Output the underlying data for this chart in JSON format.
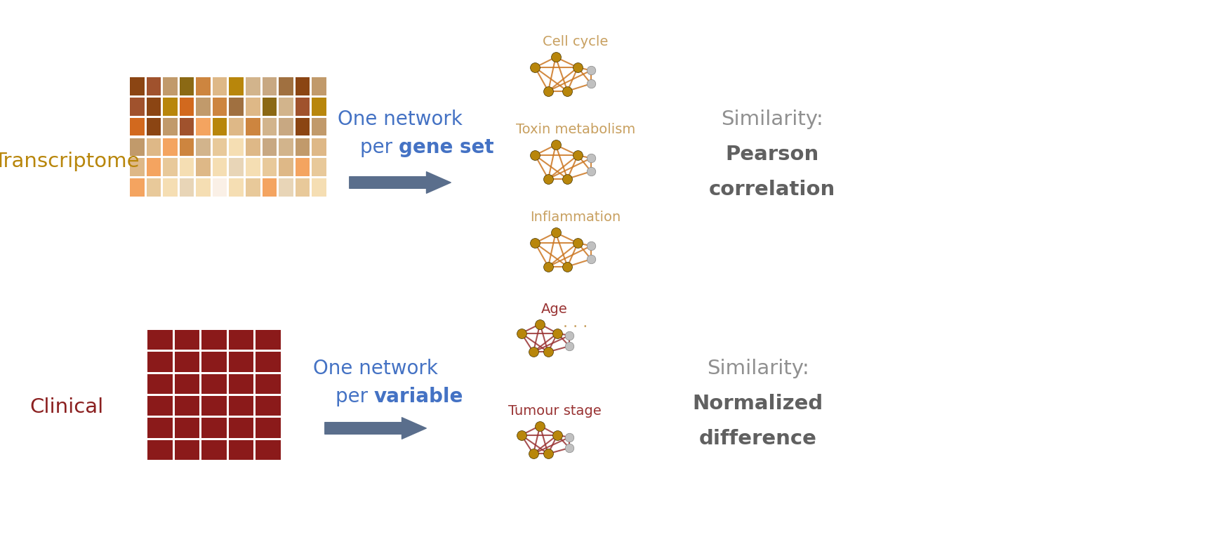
{
  "bg_color": "#ffffff",
  "transcriptome_label": "Transcriptome",
  "clinical_label": "Clinical",
  "transcriptome_color": "#B8860B",
  "clinical_color": "#8B2020",
  "arrow_color": "#5a6e8c",
  "network_edge_color_top": "#CC7722",
  "network_node_color_golden": "#B8860B",
  "network_edge_color_bottom": "#993333",
  "net_label_color_top": "#C8A060",
  "net_label_color_bottom": "#993333",
  "dots_color": "#C8A060",
  "similarity_color": "#909090",
  "similarity_bold_color": "#606060",
  "blue_text_color": "#4472C4",
  "net_labels_top": [
    "Cell cycle",
    "Toxin metabolism",
    "Inflammation"
  ],
  "net_labels_bottom": [
    "Age",
    "Tumour stage"
  ],
  "similarity_top": [
    "Similarity:",
    "Pearson",
    "correlation"
  ],
  "similarity_bottom": [
    "Similarity:",
    "Normalized",
    "difference"
  ],
  "top_text_normal": "One network",
  "top_text_pre": "per ",
  "top_text_bold": "gene set",
  "bottom_text_normal": "One network",
  "bottom_text_pre": "per ",
  "bottom_text_bold": "variable",
  "trans_hm_colors": [
    [
      "#8B4513",
      "#A0522D",
      "#C19A6B",
      "#8B6914",
      "#CD853F",
      "#DEB887",
      "#B8860B",
      "#D2B48C",
      "#C8A882",
      "#A07040",
      "#8B4513",
      "#C19A6B"
    ],
    [
      "#A0522D",
      "#8B4513",
      "#B8860B",
      "#D2691E",
      "#C19A6B",
      "#CD853F",
      "#A07040",
      "#DEB887",
      "#8B6914",
      "#D2B48C",
      "#A0522D",
      "#B8860B"
    ],
    [
      "#D2691E",
      "#8B4513",
      "#C19A6B",
      "#A0522D",
      "#F4A460",
      "#B8860B",
      "#DEB887",
      "#CD853F",
      "#D2B48C",
      "#C8A882",
      "#8B4513",
      "#C19A6B"
    ],
    [
      "#C19A6B",
      "#DEB887",
      "#F4A460",
      "#CD853F",
      "#D2B48C",
      "#E8C99A",
      "#F5DEB3",
      "#DEB887",
      "#C8A882",
      "#D2B48C",
      "#C19A6B",
      "#DEB887"
    ],
    [
      "#DEB887",
      "#F4A460",
      "#E8C99A",
      "#F5DEB3",
      "#DEB887",
      "#F5DEB3",
      "#E8D5B7",
      "#F5DEB3",
      "#E8C99A",
      "#DEB887",
      "#F4A460",
      "#E8C99A"
    ],
    [
      "#F4A460",
      "#E8C99A",
      "#F5DEB3",
      "#E8D5B7",
      "#F5DEB3",
      "#FAF0E6",
      "#F5DEB3",
      "#E8C99A",
      "#F4A460",
      "#E8D5B7",
      "#E8C99A",
      "#F5DEB3"
    ]
  ],
  "clin_color": "#8B1A1A",
  "clin_rows": 6,
  "clin_cols": 5
}
